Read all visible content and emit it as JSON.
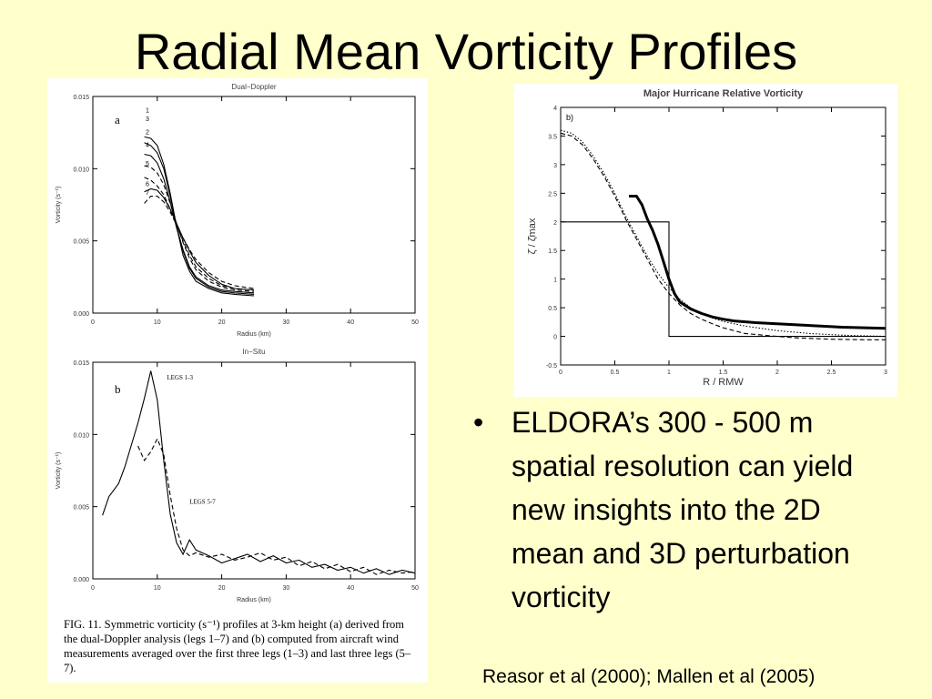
{
  "slide": {
    "title": "Radial Mean Vorticity Profiles",
    "bullet": "ELDORA’s 300 - 500 m spatial resolution can yield new insights into the 2D mean and 3D perturbation vorticity",
    "reference": "Reasor et al (2000); Mallen et al (2005)",
    "caption": "FIG. 11. Symmetric vorticity (s⁻¹) profiles at 3-km height (a) derived from the dual-Doppler analysis (legs 1–7) and (b) computed from aircraft wind measurements averaged over the first three legs (1–3) and last three legs (5–7).",
    "colors": {
      "background": "#ffffcc",
      "figure": "#ffffff",
      "ink": "#000000"
    }
  },
  "chart_data": [
    {
      "type": "line",
      "title": "Dual−Doppler",
      "panel_label": "a",
      "xlabel": "Radius (km)",
      "ylabel": "Vorticity (s⁻¹)",
      "xlim": [
        0,
        50
      ],
      "ylim": [
        0,
        0.015
      ],
      "xticks": [
        0,
        10,
        20,
        30,
        40,
        50
      ],
      "yticks": [
        0.0,
        0.005,
        0.01,
        0.015
      ],
      "xtick_labels": [
        "0",
        "10",
        "20",
        "30",
        "40",
        "50"
      ],
      "ytick_labels": [
        "0.000",
        "0.005",
        "0.010",
        "0.015"
      ],
      "series": [
        {
          "name": "1",
          "style": "solid",
          "x": [
            8,
            9,
            10,
            11,
            12,
            13,
            14,
            15,
            16,
            18,
            20,
            22,
            25
          ],
          "y": [
            0.0122,
            0.0121,
            0.0116,
            0.0103,
            0.0083,
            0.006,
            0.004,
            0.0029,
            0.0022,
            0.0017,
            0.0014,
            0.0013,
            0.0012
          ]
        },
        {
          "name": "3",
          "style": "solid",
          "x": [
            8,
            9,
            10,
            11,
            12,
            13,
            14,
            15,
            16,
            18,
            20,
            22,
            25
          ],
          "y": [
            0.0118,
            0.0116,
            0.0111,
            0.01,
            0.0081,
            0.006,
            0.0043,
            0.0031,
            0.0024,
            0.0018,
            0.0015,
            0.0014,
            0.0013
          ]
        },
        {
          "name": "2",
          "style": "solid",
          "x": [
            8,
            9,
            10,
            11,
            12,
            13,
            14,
            15,
            16,
            18,
            20,
            22,
            25
          ],
          "y": [
            0.011,
            0.0109,
            0.0104,
            0.0093,
            0.0077,
            0.0059,
            0.0044,
            0.0032,
            0.0025,
            0.0019,
            0.0016,
            0.0015,
            0.0014
          ]
        },
        {
          "name": "4",
          "style": "dashed",
          "x": [
            8,
            9,
            10,
            11,
            12,
            13,
            14,
            15,
            16,
            18,
            20,
            22,
            25
          ],
          "y": [
            0.0102,
            0.0101,
            0.0097,
            0.0089,
            0.0076,
            0.0062,
            0.0049,
            0.0038,
            0.003,
            0.0022,
            0.0018,
            0.0016,
            0.0015
          ]
        },
        {
          "name": "5",
          "style": "dashed",
          "x": [
            8,
            9,
            10,
            11,
            12,
            13,
            14,
            15,
            16,
            18,
            20,
            22,
            25
          ],
          "y": [
            0.0094,
            0.0092,
            0.0088,
            0.0082,
            0.0072,
            0.0061,
            0.005,
            0.004,
            0.0032,
            0.0024,
            0.0019,
            0.0017,
            0.0016
          ]
        },
        {
          "name": "6",
          "style": "solid",
          "x": [
            8,
            9,
            10,
            11,
            12,
            13,
            14,
            15,
            16,
            18,
            20,
            22,
            25
          ],
          "y": [
            0.0084,
            0.0086,
            0.0085,
            0.008,
            0.0072,
            0.0062,
            0.0052,
            0.0043,
            0.0035,
            0.0026,
            0.002,
            0.0017,
            0.0016
          ]
        },
        {
          "name": "7",
          "style": "dashed",
          "x": [
            8,
            9,
            10,
            11,
            12,
            13,
            14,
            15,
            16,
            18,
            20,
            22,
            25
          ],
          "y": [
            0.0076,
            0.0081,
            0.0081,
            0.0077,
            0.007,
            0.0061,
            0.0052,
            0.0044,
            0.0037,
            0.0028,
            0.0022,
            0.0019,
            0.0017
          ]
        }
      ]
    },
    {
      "type": "line",
      "title": "In−Situ",
      "panel_label": "b",
      "xlabel": "Radius (km)",
      "ylabel": "Vorticity (s⁻¹)",
      "xlim": [
        0,
        50
      ],
      "ylim": [
        0,
        0.015
      ],
      "xticks": [
        0,
        10,
        20,
        30,
        40,
        50
      ],
      "yticks": [
        0.0,
        0.005,
        0.01,
        0.015
      ],
      "xtick_labels": [
        "0",
        "10",
        "20",
        "30",
        "40",
        "50"
      ],
      "ytick_labels": [
        "0.000",
        "0.005",
        "0.010",
        "0.015"
      ],
      "series": [
        {
          "name": "LEGS 1–3",
          "label_text": "LEGS 1-3",
          "style": "solid",
          "x": [
            1.5,
            2.5,
            4,
            5,
            6,
            7,
            8,
            9,
            10,
            11,
            12,
            13,
            14,
            15,
            16,
            18,
            20,
            22,
            24,
            26,
            28,
            30,
            32,
            34,
            36,
            38,
            40,
            42,
            44,
            46,
            48,
            50
          ],
          "y": [
            0.0044,
            0.0057,
            0.0066,
            0.0078,
            0.0093,
            0.0108,
            0.0125,
            0.0144,
            0.0124,
            0.0082,
            0.0045,
            0.0025,
            0.0017,
            0.0027,
            0.002,
            0.0016,
            0.0011,
            0.0014,
            0.0017,
            0.0012,
            0.0016,
            0.0011,
            0.0013,
            0.0008,
            0.001,
            0.0006,
            0.0008,
            0.0004,
            0.0007,
            0.0003,
            0.0006,
            0.0004
          ]
        },
        {
          "name": "LEGS 5–7",
          "label_text": "LEGS 5-7",
          "style": "dashed",
          "x": [
            7,
            8,
            9,
            10,
            11,
            12,
            13,
            14,
            15,
            16,
            18,
            20,
            22,
            24,
            26,
            28,
            30,
            32,
            34,
            36,
            38,
            40,
            42,
            44,
            46,
            48,
            50
          ],
          "y": [
            0.0092,
            0.0082,
            0.0088,
            0.0097,
            0.0086,
            0.0058,
            0.0035,
            0.002,
            0.0016,
            0.0018,
            0.0015,
            0.0017,
            0.0013,
            0.0015,
            0.0018,
            0.0013,
            0.0015,
            0.0009,
            0.0012,
            0.0007,
            0.001,
            0.0005,
            0.0008,
            0.0003,
            0.0006,
            0.0004,
            0.0005
          ]
        }
      ]
    },
    {
      "type": "line",
      "title": "Major Hurricane Relative Vorticity",
      "panel_label": "b)",
      "xlabel": "R / RMW",
      "ylabel": "ζ̄ / ζ̄max",
      "xlim": [
        0,
        3
      ],
      "ylim": [
        -0.5,
        4
      ],
      "xticks": [
        0,
        0.5,
        1,
        1.5,
        2,
        2.5,
        3
      ],
      "yticks": [
        -0.5,
        0,
        0.5,
        1,
        1.5,
        2,
        2.5,
        3,
        3.5,
        4
      ],
      "xtick_labels": [
        "0",
        "0.5",
        "1",
        "1.5",
        "2",
        "2.5",
        "3"
      ],
      "ytick_labels": [
        "-0.5",
        "0",
        "0.5",
        "1",
        "1.5",
        "2",
        "2.5",
        "3",
        "3.5",
        "4"
      ],
      "series": [
        {
          "style": "solid-thick",
          "x": [
            0.63,
            0.7,
            0.75,
            0.8,
            0.85,
            0.9,
            0.95,
            1.0,
            1.05,
            1.1,
            1.2,
            1.3,
            1.4,
            1.5,
            1.6,
            1.8,
            2.0,
            2.2,
            2.4,
            2.6,
            2.8,
            3.0
          ],
          "y": [
            2.45,
            2.45,
            2.3,
            2.05,
            1.85,
            1.6,
            1.3,
            1.0,
            0.75,
            0.6,
            0.48,
            0.4,
            0.34,
            0.3,
            0.27,
            0.24,
            0.22,
            0.2,
            0.18,
            0.16,
            0.15,
            0.14
          ]
        },
        {
          "style": "step",
          "x": [
            0,
            1.0,
            1.0,
            3.0
          ],
          "y": [
            2.0,
            2.0,
            0.0,
            0.0
          ]
        },
        {
          "style": "dashed",
          "x": [
            0,
            0.1,
            0.2,
            0.3,
            0.4,
            0.5,
            0.6,
            0.7,
            0.8,
            0.9,
            1.0,
            1.1,
            1.2,
            1.3,
            1.4,
            1.5,
            1.7,
            2.0,
            2.2,
            2.5,
            2.8,
            3.0
          ],
          "y": [
            3.55,
            3.5,
            3.35,
            3.1,
            2.8,
            2.45,
            2.05,
            1.7,
            1.35,
            1.0,
            0.75,
            0.55,
            0.4,
            0.3,
            0.22,
            0.15,
            0.05,
            0.0,
            -0.03,
            -0.05,
            -0.06,
            -0.06
          ]
        },
        {
          "style": "dotted",
          "x": [
            0,
            0.1,
            0.2,
            0.3,
            0.4,
            0.5,
            0.6,
            0.7,
            0.8,
            0.9,
            1.0,
            1.1,
            1.2,
            1.3,
            1.4,
            1.5,
            1.7,
            2.0,
            2.3,
            2.6,
            3.0
          ],
          "y": [
            3.6,
            3.55,
            3.4,
            3.15,
            2.85,
            2.5,
            2.1,
            1.75,
            1.4,
            1.1,
            0.85,
            0.65,
            0.5,
            0.4,
            0.32,
            0.26,
            0.18,
            0.1,
            0.05,
            0.02,
            0.0
          ]
        }
      ]
    }
  ]
}
